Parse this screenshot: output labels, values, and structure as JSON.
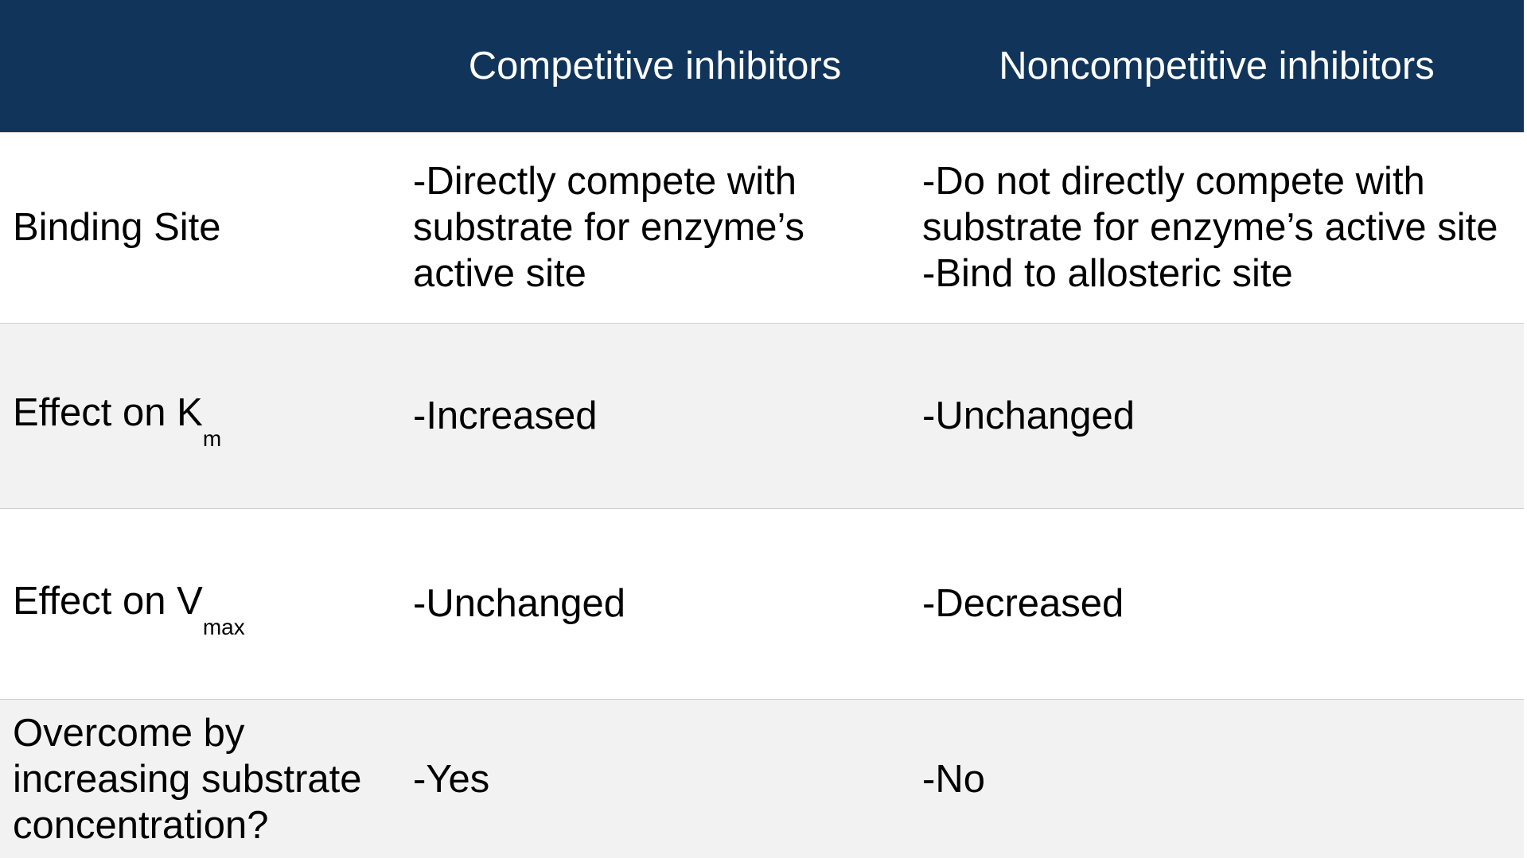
{
  "table": {
    "header": {
      "corner": "",
      "col1": "Competitive inhibitors",
      "col2": "Noncompetitive inhibitors"
    },
    "rows": [
      {
        "label": "Binding Site",
        "competitive_lines": [
          "-Directly compete with",
          "substrate for enzyme’s",
          "active site"
        ],
        "noncompetitive_lines": [
          "-Do not directly compete with",
          "substrate for enzyme’s active site",
          "-Bind to allosteric site"
        ]
      },
      {
        "label_main": "Effect on K",
        "label_sub": "m",
        "competitive": "-Increased",
        "noncompetitive": "-Unchanged"
      },
      {
        "label_main": "Effect on V",
        "label_sub": "max",
        "competitive": "-Unchanged",
        "noncompetitive": "-Decreased"
      },
      {
        "label_lines": [
          "Overcome by",
          "increasing substrate",
          "concentration?"
        ],
        "competitive": "-Yes",
        "noncompetitive": "-No"
      }
    ]
  },
  "colors": {
    "header_bg": "#11355a",
    "header_text": "#ffffff",
    "row_alt_bg": "#f2f2f2",
    "row_bg": "#ffffff",
    "divider": "#d0d0d0"
  }
}
